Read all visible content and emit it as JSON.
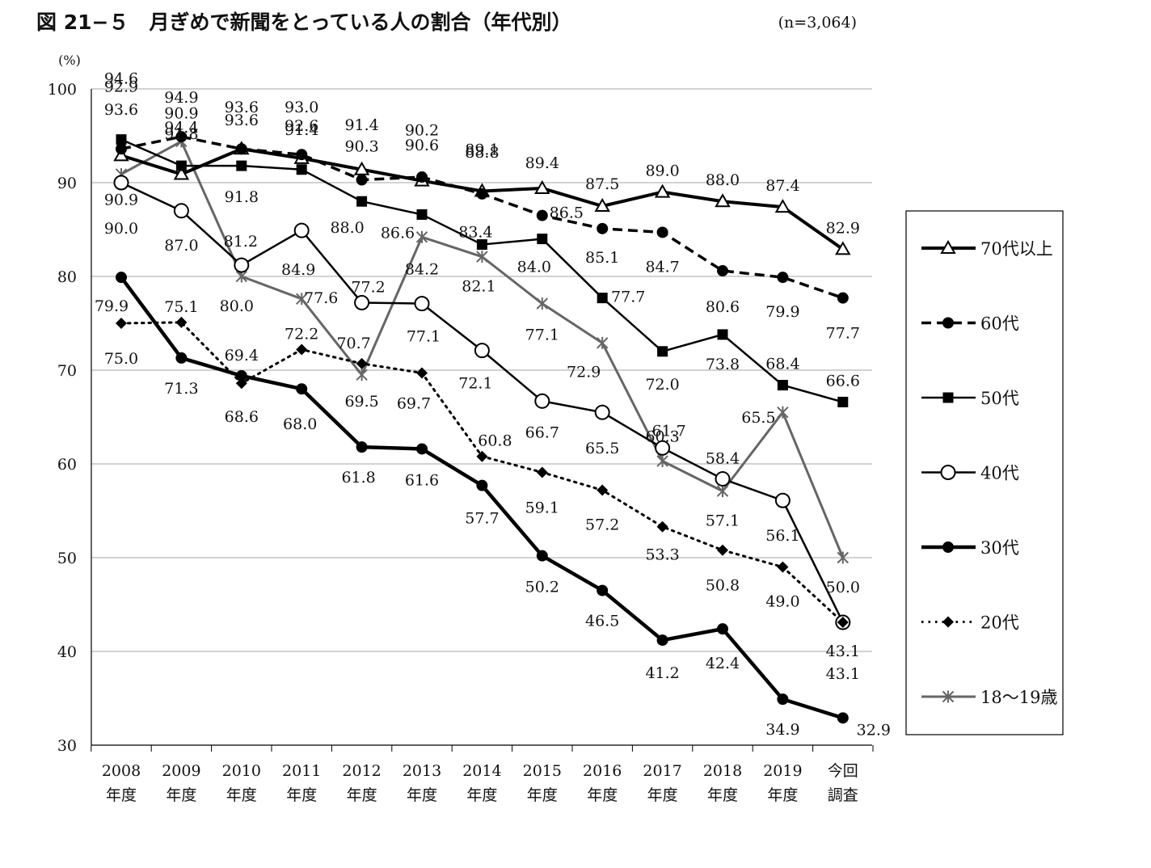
{
  "header": {
    "title": "図 21−５　月ぎめで新聞をとっている人の割合（年代別）",
    "sample": "(n=3,064)"
  },
  "chart_data": {
    "type": "line",
    "title": "図 21−５　月ぎめで新聞をとっている人の割合（年代別）",
    "ylabel": "(%)",
    "xlabel": "",
    "ylim": [
      30,
      100
    ],
    "yticks": [
      "100",
      "90",
      "80",
      "70",
      "60",
      "50",
      "40",
      "30"
    ],
    "grid": true,
    "legend_position": "right",
    "categories": [
      [
        "2008",
        "年度"
      ],
      [
        "2009",
        "年度"
      ],
      [
        "2010",
        "年度"
      ],
      [
        "2011",
        "年度"
      ],
      [
        "2012",
        "年度"
      ],
      [
        "2013",
        "年度"
      ],
      [
        "2014",
        "年度"
      ],
      [
        "2015",
        "年度"
      ],
      [
        "2016",
        "年度"
      ],
      [
        "2017",
        "年度"
      ],
      [
        "2018",
        "年度"
      ],
      [
        "2019",
        "年度"
      ],
      [
        "今回",
        "調査"
      ]
    ],
    "series": [
      {
        "name": "70代以上",
        "values": [
          92.9,
          90.9,
          93.6,
          92.6,
          91.4,
          90.2,
          89.1,
          89.4,
          87.5,
          89.0,
          88.0,
          87.4,
          82.9
        ],
        "labels": [
          "92.9",
          "90.9",
          "93.6",
          "92.6",
          "91.4",
          "90.2",
          "89.1",
          "89.4",
          "87.5",
          "89.0",
          "88.0",
          "87.4",
          "82.9"
        ],
        "color": "#000000",
        "marker": "triangle",
        "dash": "solid",
        "width": 4
      },
      {
        "name": "60代",
        "values": [
          93.6,
          94.9,
          93.6,
          93.0,
          90.3,
          90.6,
          88.8,
          86.5,
          85.1,
          84.7,
          80.6,
          79.9,
          77.7
        ],
        "labels": [
          "93.6",
          "94.9",
          "93.6",
          "93.0",
          "90.3",
          "90.6",
          "88.8",
          "86.5",
          "85.1",
          "84.7",
          "80.6",
          "79.9",
          "77.7"
        ],
        "color": "#000000",
        "marker": "circle-filled",
        "dash": "dashed",
        "width": 3.5
      },
      {
        "name": "50代",
        "values": [
          94.6,
          91.8,
          91.8,
          91.4,
          88.0,
          86.6,
          83.4,
          84.0,
          77.7,
          72.0,
          73.8,
          68.4,
          66.6
        ],
        "labels": [
          "94.6",
          "91.8",
          "91.8",
          "91.4",
          "88.0",
          "86.6",
          "83.4",
          "84.0",
          "77.7",
          "72.0",
          "73.8",
          "68.4",
          "66.6"
        ],
        "color": "#000000",
        "marker": "square",
        "dash": "solid",
        "width": 2.5
      },
      {
        "name": "40代",
        "values": [
          90.0,
          87.0,
          81.2,
          84.9,
          77.2,
          77.1,
          72.1,
          66.7,
          65.5,
          61.7,
          58.4,
          56.1,
          43.1
        ],
        "labels": [
          "90.0",
          "87.0",
          "81.2",
          "84.9",
          "77.2",
          "77.1",
          "72.1",
          "66.7",
          "65.5",
          "61.7",
          "58.4",
          "56.1",
          "43.1"
        ],
        "color": "#000000",
        "marker": "circle-open",
        "dash": "solid",
        "width": 2.5
      },
      {
        "name": "30代",
        "values": [
          79.9,
          71.3,
          69.4,
          68.0,
          61.8,
          61.6,
          57.7,
          50.2,
          46.5,
          41.2,
          42.4,
          34.9,
          32.9
        ],
        "labels": [
          "79.9",
          "71.3",
          "69.4",
          "68.0",
          "61.8",
          "61.6",
          "57.7",
          "50.2",
          "46.5",
          "41.2",
          "42.4",
          "34.9",
          "32.9"
        ],
        "color": "#000000",
        "marker": "circle-filled",
        "dash": "solid",
        "width": 4.5
      },
      {
        "name": "20代",
        "values": [
          75.0,
          75.1,
          68.6,
          72.2,
          70.7,
          69.7,
          60.8,
          59.1,
          57.2,
          53.3,
          50.8,
          49.0,
          43.1
        ],
        "labels": [
          "75.0",
          "75.1",
          "68.6",
          "72.2",
          "70.7",
          "69.7",
          "60.8",
          "59.1",
          "57.2",
          "53.3",
          "50.8",
          "49.0",
          "43.1"
        ],
        "color": "#000000",
        "marker": "diamond",
        "dash": "dotted",
        "width": 3
      },
      {
        "name": "18〜19歳",
        "values": [
          90.9,
          94.4,
          80.0,
          77.6,
          69.5,
          84.2,
          82.1,
          77.1,
          72.9,
          60.3,
          57.1,
          65.5,
          50.0
        ],
        "labels": [
          "90.9",
          "94.4",
          "80.0",
          "77.6",
          "69.5",
          "84.2",
          "82.1",
          "77.1",
          "72.9",
          "60.3",
          "57.1",
          "65.5",
          "50.0"
        ],
        "color": "#666666",
        "marker": "asterisk",
        "dash": "solid",
        "width": 3
      }
    ]
  }
}
